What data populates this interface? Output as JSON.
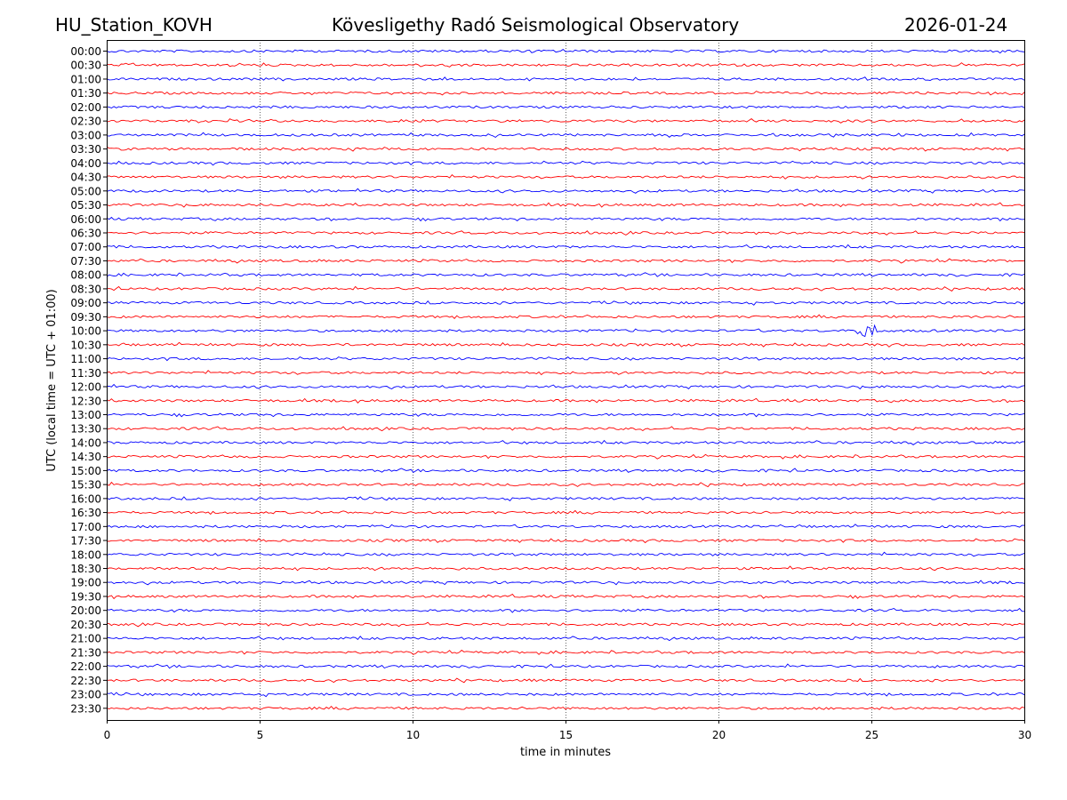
{
  "header": {
    "station": "HU_Station_KOVH",
    "title": "Kövesligethy Radó Seismological Observatory",
    "date": "2026-01-24"
  },
  "chart_data": {
    "type": "line",
    "title": "Kövesligethy Radó Seismological Observatory",
    "xlabel": "time in minutes",
    "ylabel": "UTC (local time = UTC + 01:00)",
    "xlim": [
      0,
      30
    ],
    "xticks": [
      0,
      5,
      10,
      15,
      20,
      25,
      30
    ],
    "grid": "vertical dotted lines at x ticks",
    "series_colors": [
      "#0000ff",
      "#ff0000"
    ],
    "rows": [
      "00:00",
      "00:30",
      "01:00",
      "01:30",
      "02:00",
      "02:30",
      "03:00",
      "03:30",
      "04:00",
      "04:30",
      "05:00",
      "05:30",
      "06:00",
      "06:30",
      "07:00",
      "07:30",
      "08:00",
      "08:30",
      "09:00",
      "09:30",
      "10:00",
      "10:30",
      "11:00",
      "11:30",
      "12:00",
      "12:30",
      "13:00",
      "13:30",
      "14:00",
      "14:30",
      "15:00",
      "15:30",
      "16:00",
      "16:30",
      "17:00",
      "17:30",
      "18:00",
      "18:30",
      "19:00",
      "19:30",
      "20:00",
      "20:30",
      "21:00",
      "21:30",
      "22:00",
      "22:30",
      "23:00",
      "23:30"
    ],
    "events": [
      {
        "row": "10:00",
        "minute": 24.8,
        "description": "spike"
      }
    ]
  }
}
